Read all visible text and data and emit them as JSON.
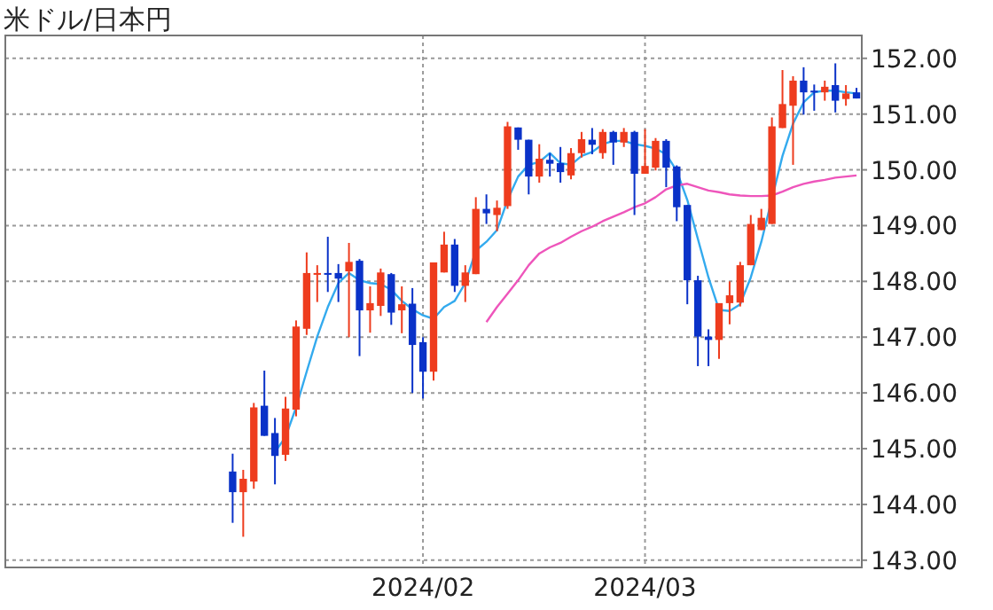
{
  "chart_data": {
    "type": "candlestick",
    "title": "米ドル/日本円",
    "categories": [
      null,
      null,
      null,
      null,
      null,
      null,
      null,
      null,
      null,
      null,
      null,
      null,
      null,
      null,
      null,
      null,
      null,
      null,
      null,
      null,
      null,
      null,
      null,
      null,
      null,
      null,
      null,
      null,
      null,
      null,
      null,
      null,
      null,
      null,
      null,
      null,
      null,
      null,
      null,
      "2024/02",
      null,
      null,
      null,
      null,
      null,
      null,
      null,
      null,
      null,
      null,
      null,
      null,
      null,
      null,
      null,
      null,
      null,
      null,
      null,
      null,
      "2024/03",
      null,
      null,
      null,
      null,
      null,
      null,
      null,
      null,
      null,
      null,
      null,
      null,
      null,
      null,
      null,
      null,
      null,
      null,
      null,
      null
    ],
    "ohlc": [
      null,
      null,
      null,
      null,
      null,
      null,
      null,
      null,
      null,
      null,
      null,
      null,
      null,
      null,
      null,
      null,
      null,
      null,
      null,
      null,
      null,
      [
        144.59,
        144.91,
        143.67,
        144.22
      ],
      [
        144.22,
        144.62,
        143.42,
        144.46
      ],
      [
        144.41,
        145.82,
        144.28,
        145.74
      ],
      [
        145.77,
        146.4,
        145.23,
        145.23
      ],
      [
        145.28,
        145.55,
        144.36,
        144.87
      ],
      [
        144.89,
        145.93,
        144.78,
        145.72
      ],
      [
        145.7,
        147.3,
        145.58,
        147.19
      ],
      [
        147.15,
        148.52,
        147.04,
        148.15
      ],
      [
        148.12,
        148.29,
        147.63,
        148.15
      ],
      [
        148.15,
        148.8,
        147.81,
        148.12
      ],
      [
        148.15,
        148.31,
        147.63,
        148.05
      ],
      [
        148.18,
        148.69,
        147.0,
        148.35
      ],
      [
        148.37,
        148.4,
        146.66,
        147.48
      ],
      [
        147.48,
        147.91,
        147.08,
        147.61
      ],
      [
        147.56,
        148.23,
        147.38,
        148.16
      ],
      [
        148.13,
        148.15,
        147.22,
        147.44
      ],
      [
        147.48,
        147.91,
        147.07,
        147.59
      ],
      [
        147.6,
        147.88,
        146.0,
        146.86
      ],
      [
        146.91,
        147.0,
        145.9,
        146.38
      ],
      [
        146.38,
        148.34,
        146.22,
        148.34
      ],
      [
        148.16,
        148.89,
        148.16,
        148.66
      ],
      [
        148.66,
        148.76,
        147.81,
        147.92
      ],
      [
        147.92,
        148.29,
        147.63,
        148.16
      ],
      [
        148.13,
        149.51,
        148.13,
        149.3
      ],
      [
        149.3,
        149.56,
        149.03,
        149.22
      ],
      [
        149.19,
        149.45,
        148.9,
        149.32
      ],
      [
        149.35,
        150.86,
        149.3,
        150.78
      ],
      [
        150.76,
        150.76,
        150.36,
        150.54
      ],
      [
        150.54,
        150.54,
        149.56,
        149.88
      ],
      [
        149.88,
        150.46,
        149.77,
        150.2
      ],
      [
        150.18,
        150.3,
        149.88,
        150.11
      ],
      [
        150.12,
        150.41,
        149.77,
        149.96
      ],
      [
        149.9,
        150.39,
        149.83,
        150.3
      ],
      [
        150.3,
        150.68,
        150.22,
        150.55
      ],
      [
        150.54,
        150.75,
        150.28,
        150.45
      ],
      [
        150.3,
        150.73,
        150.2,
        150.68
      ],
      [
        150.68,
        150.7,
        150.09,
        150.49
      ],
      [
        150.49,
        150.75,
        150.41,
        150.68
      ],
      [
        150.68,
        150.7,
        149.19,
        149.93
      ],
      [
        149.93,
        150.73,
        149.93,
        150.07
      ],
      [
        150.04,
        150.57,
        149.99,
        150.52
      ],
      [
        150.52,
        150.55,
        149.69,
        150.04
      ],
      [
        150.06,
        150.08,
        149.08,
        149.33
      ],
      [
        149.37,
        149.37,
        147.59,
        148.02
      ],
      [
        148.02,
        148.1,
        146.48,
        147.01
      ],
      [
        147.01,
        147.14,
        146.48,
        146.95
      ],
      [
        146.95,
        147.61,
        146.61,
        147.61
      ],
      [
        147.61,
        148.0,
        147.23,
        147.75
      ],
      [
        147.62,
        148.35,
        147.55,
        148.29
      ],
      [
        148.29,
        149.19,
        148.29,
        149.03
      ],
      [
        148.92,
        149.3,
        148.92,
        149.14
      ],
      [
        149.03,
        150.94,
        149.03,
        150.78
      ],
      [
        150.75,
        151.79,
        150.75,
        151.18
      ],
      [
        151.15,
        151.68,
        150.09,
        151.6
      ],
      [
        151.6,
        151.84,
        150.99,
        151.39
      ],
      [
        151.42,
        151.53,
        151.06,
        151.39
      ],
      [
        151.39,
        151.6,
        151.24,
        151.49
      ],
      [
        151.52,
        151.91,
        151.03,
        151.24
      ],
      [
        151.27,
        151.52,
        151.15,
        151.37
      ],
      [
        151.39,
        151.47,
        151.28,
        151.28
      ]
    ],
    "colors": [
      null,
      null,
      null,
      null,
      null,
      null,
      null,
      null,
      null,
      null,
      null,
      null,
      null,
      null,
      null,
      null,
      null,
      null,
      null,
      null,
      null,
      "#0a32c8",
      "#ee3c1e",
      "#ee3c1e",
      "#0a32c8",
      "#0a32c8",
      "#ee3c1e",
      "#ee3c1e",
      "#ee3c1e",
      "#ee3c1e",
      "#0a32c8",
      "#0a32c8",
      "#ee3c1e",
      "#0a32c8",
      "#ee3c1e",
      "#ee3c1e",
      "#0a32c8",
      "#ee3c1e",
      "#0a32c8",
      "#0a32c8",
      "#ee3c1e",
      "#ee3c1e",
      "#0a32c8",
      "#ee3c1e",
      "#ee3c1e",
      "#0a32c8",
      "#ee3c1e",
      "#ee3c1e",
      "#0a32c8",
      "#0a32c8",
      "#ee3c1e",
      "#0a32c8",
      "#0a32c8",
      "#ee3c1e",
      "#ee3c1e",
      "#0a32c8",
      "#ee3c1e",
      "#0a32c8",
      "#ee3c1e",
      "#0a32c8",
      "#ee3c1e",
      "#ee3c1e",
      "#0a32c8",
      "#0a32c8",
      "#0a32c8",
      "#0a32c8",
      "#0a32c8",
      "#ee3c1e",
      "#ee3c1e",
      "#ee3c1e",
      "#ee3c1e",
      "#ee3c1e",
      "#ee3c1e",
      "#ee3c1e",
      "#ee3c1e",
      "#0a32c8",
      "#0a32c8",
      "#ee3c1e",
      "#0a32c8",
      "#ee3c1e",
      "#0a32c8"
    ],
    "series": [
      {
        "type": "line",
        "color": "#33aaee",
        "values": [
          null,
          null,
          null,
          null,
          null,
          null,
          null,
          null,
          null,
          null,
          null,
          null,
          null,
          null,
          null,
          null,
          null,
          null,
          null,
          null,
          null,
          null,
          null,
          null,
          null,
          144.94,
          145.21,
          145.74,
          146.38,
          147.01,
          147.54,
          147.97,
          148.15,
          148.02,
          147.97,
          147.95,
          147.85,
          147.65,
          147.5,
          147.39,
          147.33,
          147.54,
          147.65,
          147.97,
          148.55,
          148.71,
          148.92,
          149.46,
          149.88,
          150.09,
          150.14,
          150.3,
          150.12,
          150.09,
          150.25,
          150.32,
          150.46,
          150.52,
          150.52,
          150.46,
          150.43,
          150.38,
          150.28,
          149.98,
          149.46,
          148.76,
          148.07,
          147.49,
          147.47,
          147.59,
          148.07,
          148.71,
          null,
          150.25,
          150.83,
          151.21,
          151.39,
          151.42,
          151.42,
          151.39,
          151.37
        ]
      },
      {
        "type": "line",
        "color": "#ee55bb",
        "values": [
          null,
          null,
          null,
          null,
          null,
          null,
          null,
          null,
          null,
          null,
          null,
          null,
          null,
          null,
          null,
          null,
          null,
          null,
          null,
          null,
          null,
          null,
          null,
          null,
          null,
          null,
          null,
          null,
          null,
          null,
          null,
          null,
          null,
          null,
          null,
          null,
          null,
          null,
          null,
          null,
          null,
          null,
          null,
          null,
          null,
          147.27,
          147.54,
          147.78,
          148.02,
          148.29,
          148.5,
          148.61,
          148.69,
          148.8,
          148.9,
          148.98,
          149.08,
          149.16,
          149.24,
          149.33,
          149.4,
          149.51,
          149.65,
          149.72,
          149.75,
          149.69,
          149.63,
          149.6,
          149.56,
          149.54,
          149.53,
          149.53,
          149.54,
          149.61,
          149.69,
          149.75,
          149.79,
          149.82,
          149.86,
          149.88,
          149.9
        ]
      }
    ],
    "ylim": [
      142.87,
      152.41
    ],
    "yticks": [
      {
        "value": 143,
        "label": "143.00"
      },
      {
        "value": 144,
        "label": "144.00"
      },
      {
        "value": 145,
        "label": "145.00"
      },
      {
        "value": 146,
        "label": "146.00"
      },
      {
        "value": 147,
        "label": "147.00"
      },
      {
        "value": 148,
        "label": "148.00"
      },
      {
        "value": 149,
        "label": "149.00"
      },
      {
        "value": 150,
        "label": "150.00"
      },
      {
        "value": 151,
        "label": "151.00"
      },
      {
        "value": 152,
        "label": "152.00"
      }
    ],
    "grid": true
  }
}
